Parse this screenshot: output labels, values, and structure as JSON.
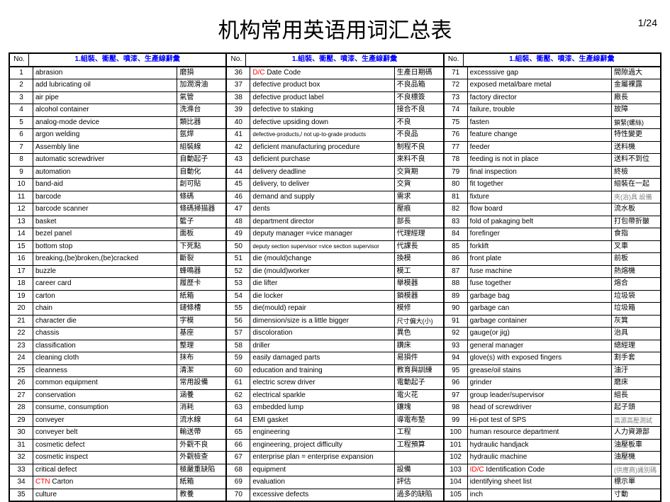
{
  "page_no": "1/24",
  "title": "机构常用英语用词汇总表",
  "header": {
    "no": "No.",
    "category": "1.組裝、衝壓、噴漆、生產線辭彙"
  },
  "columns": [
    [
      {
        "no": "1",
        "en": "abrasion",
        "zh": "磨損"
      },
      {
        "no": "2",
        "en": "add lubricating oil",
        "zh": "加潤滑油"
      },
      {
        "no": "3",
        "en": "air pipe",
        "zh": "氣管"
      },
      {
        "no": "4",
        "en": "alcohol container",
        "zh": "洗滌台"
      },
      {
        "no": "5",
        "en": "analog-mode device",
        "zh": "類比器"
      },
      {
        "no": "6",
        "en": "argon welding",
        "zh": "氬焊"
      },
      {
        "no": "7",
        "en": "Assembly line",
        "zh": "組裝線"
      },
      {
        "no": "8",
        "en": "automatic screwdriver",
        "zh": "自動起子"
      },
      {
        "no": "9",
        "en": "automation",
        "zh": "自動化"
      },
      {
        "no": "10",
        "en": "band-aid",
        "zh": "創可貼"
      },
      {
        "no": "11",
        "en": "barcode",
        "zh": "條碼"
      },
      {
        "no": "12",
        "en": "barcode scanner",
        "zh": "條碼掃描器"
      },
      {
        "no": "13",
        "en": "basket",
        "zh": "籃子"
      },
      {
        "no": "14",
        "en": "bezel panel",
        "zh": "面板"
      },
      {
        "no": "15",
        "en": "bottom stop",
        "zh": "下死點"
      },
      {
        "no": "16",
        "en": "breaking,(be)broken,(be)cracked",
        "zh": "斷裂"
      },
      {
        "no": "17",
        "en": "buzzle",
        "zh": "蜂鳴器"
      },
      {
        "no": "18",
        "en": "career card",
        "zh": "履歷卡"
      },
      {
        "no": "19",
        "en": "carton",
        "zh": "紙箱"
      },
      {
        "no": "20",
        "en": "chain",
        "zh": "鏈條槽"
      },
      {
        "no": "21",
        "en": "character die",
        "zh": "字模"
      },
      {
        "no": "22",
        "en": "chassis",
        "zh": "基座"
      },
      {
        "no": "23",
        "en": "classification",
        "zh": "整理"
      },
      {
        "no": "24",
        "en": "cleaning cloth",
        "zh": "抹布"
      },
      {
        "no": "25",
        "en": "cleanness",
        "zh": "清潔"
      },
      {
        "no": "26",
        "en": "common equipment",
        "zh": "常用設備"
      },
      {
        "no": "27",
        "en": "conservation",
        "zh": "涵養"
      },
      {
        "no": "28",
        "en": "consume, consumption",
        "zh": "消耗"
      },
      {
        "no": "29",
        "en": "conveyer",
        "zh": "流水線"
      },
      {
        "no": "30",
        "en": "conveyer belt",
        "zh": "輸送帶"
      },
      {
        "no": "31",
        "en": "cosmetic defect",
        "zh": "外觀不良"
      },
      {
        "no": "32",
        "en": "cosmetic inspect",
        "zh": "外觀檢查"
      },
      {
        "no": "33",
        "en": "critical defect",
        "zh": "極嚴重缺陷"
      },
      {
        "no": "34",
        "en": "CTN  Carton",
        "en_prefix_red": "CTN",
        "zh": "紙箱"
      },
      {
        "no": "35",
        "en": "culture",
        "zh": "教養"
      }
    ],
    [
      {
        "no": "36",
        "en": "D/C  Date Code",
        "en_prefix_red": "D/C",
        "zh": "生產日期碼"
      },
      {
        "no": "37",
        "en": "defective product box",
        "zh": "不良品箱"
      },
      {
        "no": "38",
        "en": "defective product label",
        "zh": "不良標簽"
      },
      {
        "no": "39",
        "en": "defective to staking",
        "zh": "接合不良"
      },
      {
        "no": "40",
        "en": "defective upsiding down",
        "zh": "不良"
      },
      {
        "no": "41",
        "en": "defective-products,/ not up-to-grade products",
        "zh": "不良品",
        "small": true
      },
      {
        "no": "42",
        "en": "deficient manufacturing procedure",
        "zh": "制程不良"
      },
      {
        "no": "43",
        "en": "deficient purchase",
        "zh": "來料不良"
      },
      {
        "no": "44",
        "en": "delivery deadline",
        "zh": "交貨期"
      },
      {
        "no": "45",
        "en": "delivery, to deliver",
        "zh": "交貨"
      },
      {
        "no": "46",
        "en": "demand and supply",
        "zh": "需求"
      },
      {
        "no": "47",
        "en": "dents",
        "zh": "壓痕"
      },
      {
        "no": "48",
        "en": "department director",
        "zh": "部長"
      },
      {
        "no": "49",
        "en": "deputy manager  =vice manager",
        "zh": "代理經理"
      },
      {
        "no": "50",
        "en": "deputy section supervisor =vice section supervisor",
        "zh": "代課長",
        "small": true
      },
      {
        "no": "51",
        "en": "die (mould)change",
        "zh": "換模"
      },
      {
        "no": "52",
        "en": "die (mould)worker",
        "zh": "模工"
      },
      {
        "no": "53",
        "en": "die lifter",
        "zh": "舉模器"
      },
      {
        "no": "54",
        "en": "die locker",
        "zh": "鎖模器"
      },
      {
        "no": "55",
        "en": "die(mould) repair",
        "zh": "模修"
      },
      {
        "no": "56",
        "en": "dimension/size is a little bigger",
        "zh": "尺寸偏大(小)"
      },
      {
        "no": "57",
        "en": "discoloration",
        "zh": "異色"
      },
      {
        "no": "58",
        "en": "driller",
        "zh": "鑽床"
      },
      {
        "no": "59",
        "en": "easily damaged parts",
        "zh": "易損件"
      },
      {
        "no": "60",
        "en": "education and training",
        "zh": "教育與訓練"
      },
      {
        "no": "61",
        "en": "electric screw driver",
        "zh": "電動起子"
      },
      {
        "no": "62",
        "en": "electrical sparkle",
        "zh": "電火花"
      },
      {
        "no": "63",
        "en": "embedded lump",
        "zh": "鑲塊"
      },
      {
        "no": "64",
        "en": "EMI gasket",
        "zh": "導電布墊"
      },
      {
        "no": "65",
        "en": "engineering",
        "zh": "工程"
      },
      {
        "no": "66",
        "en": "engineering, project difficulty",
        "zh": "工程預算"
      },
      {
        "no": "67",
        "en": "enterprise plan = enterprise expansion",
        "zh": ""
      },
      {
        "no": "68",
        "en": "equipment",
        "zh": "設備"
      },
      {
        "no": "69",
        "en": "evaluation",
        "zh": "評估"
      },
      {
        "no": "70",
        "en": "excessive defects",
        "zh": "過多的缺陷"
      }
    ],
    [
      {
        "no": "71",
        "en": "excesssive gap",
        "zh": "間隙過大"
      },
      {
        "no": "72",
        "en": "exposed metal/bare metal",
        "zh": "金屬裸露"
      },
      {
        "no": "73",
        "en": "factory director",
        "zh": "廠長"
      },
      {
        "no": "74",
        "en": "failure, trouble",
        "zh": "故障"
      },
      {
        "no": "75",
        "en": "fasten",
        "zh": "鎖緊(螺絲)"
      },
      {
        "no": "76",
        "en": "feature change",
        "zh": "特性變更"
      },
      {
        "no": "77",
        "en": "feeder",
        "zh": "送料機"
      },
      {
        "no": "78",
        "en": "feeding is not in place",
        "zh": "送料不到位"
      },
      {
        "no": "79",
        "en": "final inspection",
        "zh": "終檢"
      },
      {
        "no": "80",
        "en": "fit together",
        "zh": "組裝在一起"
      },
      {
        "no": "81",
        "en": "fixture",
        "zh": "夾(治)具 設備",
        "zh_gray": true
      },
      {
        "no": "82",
        "en": "flow board",
        "zh": "流水板"
      },
      {
        "no": "83",
        "en": "fold of pakaging belt",
        "zh": "打包帶折皺"
      },
      {
        "no": "84",
        "en": "forefinger",
        "zh": "食指"
      },
      {
        "no": "85",
        "en": "forklift",
        "zh": "叉車"
      },
      {
        "no": "86",
        "en": "front plate",
        "zh": "前板"
      },
      {
        "no": "87",
        "en": "fuse machine",
        "zh": "熱熔機"
      },
      {
        "no": "88",
        "en": "fuse together",
        "zh": "熔合"
      },
      {
        "no": "89",
        "en": "garbage bag",
        "zh": "垃圾袋"
      },
      {
        "no": "90",
        "en": "garbage can",
        "zh": "垃圾箱"
      },
      {
        "no": "91",
        "en": "garbage container",
        "zh": "灰箕"
      },
      {
        "no": "92",
        "en": "gauge(or jig)",
        "zh": "治具"
      },
      {
        "no": "93",
        "en": "general manager",
        "zh": "總經理"
      },
      {
        "no": "94",
        "en": "glove(s) with exposed fingers",
        "zh": "割手套"
      },
      {
        "no": "95",
        "en": "grease/oil stains",
        "zh": "油汙"
      },
      {
        "no": "96",
        "en": "grinder",
        "zh": "磨床"
      },
      {
        "no": "97",
        "en": "group leader/supervisor",
        "zh": "組長"
      },
      {
        "no": "98",
        "en": "head of screwdriver",
        "zh": "起子頭"
      },
      {
        "no": "99",
        "en": "Hi-pot test of SPS",
        "zh": "高源高壓測試",
        "zh_gray": true
      },
      {
        "no": "100",
        "en": "human resource department",
        "zh": "人力資源部"
      },
      {
        "no": "101",
        "en": "hydraulic handjack",
        "zh": "油壓板車"
      },
      {
        "no": "102",
        "en": "hydraulic machine",
        "zh": "油壓機"
      },
      {
        "no": "103",
        "en": "ID/C  Identification Code",
        "en_prefix_red": "ID/C",
        "zh": "(供應商)識別碼",
        "zh_gray": true
      },
      {
        "no": "104",
        "en": "identifying sheet list",
        "zh": "標示單"
      },
      {
        "no": "105",
        "en": "inch",
        "zh": "寸動"
      }
    ]
  ]
}
